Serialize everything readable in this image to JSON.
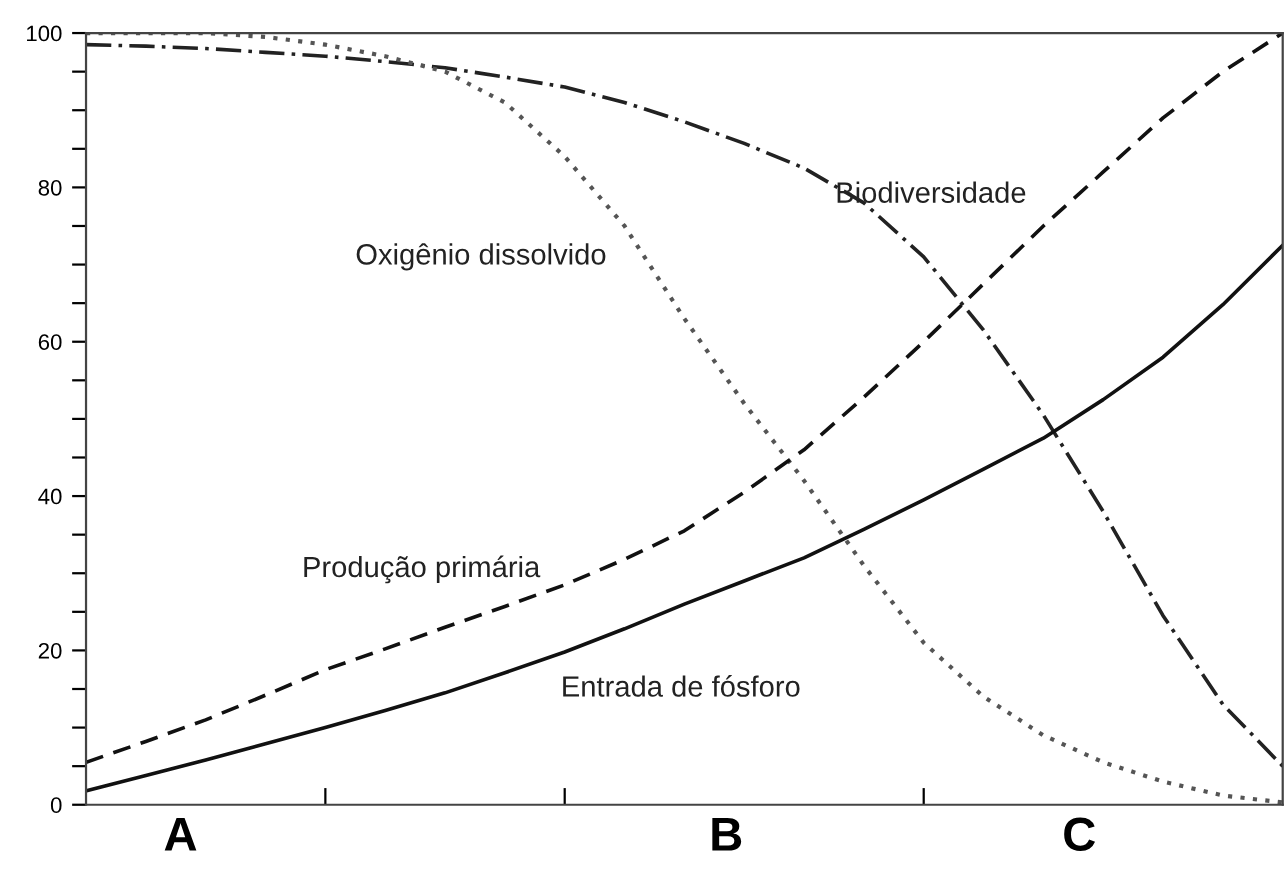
{
  "chart_data": {
    "type": "line",
    "categories": [
      null,
      null,
      null,
      null,
      null,
      null,
      null,
      null,
      null,
      null,
      null,
      null,
      null,
      null,
      null,
      null,
      null,
      null,
      null,
      null,
      null
    ],
    "annotations": [
      "A",
      "B",
      "C"
    ],
    "ylim": [
      0,
      100
    ],
    "yticks": [
      0,
      {
        "value": 5,
        "label": null
      },
      {
        "value": 10,
        "label": null
      },
      {
        "value": 15,
        "label": null
      },
      20,
      {
        "value": 25,
        "label": null
      },
      {
        "value": 30,
        "label": null
      },
      {
        "value": 35,
        "label": null
      },
      40,
      {
        "value": 45,
        "label": null
      },
      {
        "value": 50,
        "label": null
      },
      {
        "value": 55,
        "label": null
      },
      60,
      {
        "value": 65,
        "label": null
      },
      {
        "value": 70,
        "label": null
      },
      {
        "value": 75,
        "label": null
      },
      80,
      {
        "value": 85,
        "label": null
      },
      {
        "value": 90,
        "label": null
      },
      {
        "value": 95,
        "label": null
      },
      100
    ],
    "grid": false,
    "legend": false,
    "marker": "none",
    "series": [
      {
        "name": "Biodiversidade",
        "color": "#222222",
        "line_style": "dashdot",
        "values": [
          98.5,
          98.3,
          98,
          97.5,
          97,
          96.3,
          95.5,
          94.3,
          93,
          91,
          88.5,
          85.7,
          82.5,
          78,
          71,
          61.5,
          50.5,
          38,
          24.5,
          13,
          5
        ]
      },
      {
        "name": "Oxigênio dissolvido",
        "color": "#555555",
        "line_style": "dotted",
        "values": [
          100,
          100,
          100,
          99.5,
          98.5,
          97,
          95,
          91,
          84,
          75,
          63,
          52,
          42,
          31,
          21,
          14,
          9,
          5.5,
          3,
          1.2,
          0.3
        ]
      },
      {
        "name": "Produção primária",
        "color": "#111111",
        "line_style": "dashed",
        "values": [
          5.5,
          8.2,
          11,
          14.2,
          17.5,
          20.2,
          23,
          25.7,
          28.5,
          31.8,
          35.5,
          40.5,
          46,
          52.8,
          60,
          67.5,
          75,
          82,
          89,
          95,
          100
        ]
      },
      {
        "name": "Entrada de fósforo",
        "color": "#111111",
        "line_style": "solid",
        "values": [
          1.8,
          3.8,
          5.8,
          7.9,
          10,
          12.2,
          14.5,
          17.1,
          19.8,
          22.8,
          26,
          29,
          32,
          35.7,
          39.5,
          43.5,
          47.5,
          52.5,
          58,
          64.8,
          72.5
        ]
      }
    ]
  }
}
